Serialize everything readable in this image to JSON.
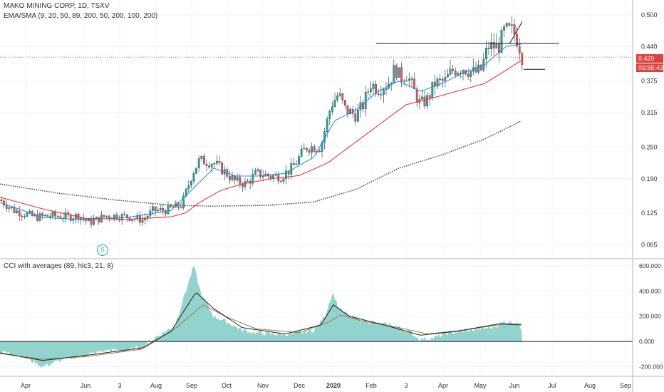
{
  "header": {
    "title": "MAKO MINING CORP, 1D, TSXV",
    "indicators": "EMA/SMA (9, 20, 50, 89, 200, 50, 200, 100, 200)",
    "cci_label": "CCI with averages (89, hlc3, 21, 8)"
  },
  "price_tag": {
    "price": "0.420",
    "countdown": "03:55:43"
  },
  "split_marker": "S",
  "colors": {
    "up": "#26a69a",
    "down": "#ef5350",
    "wick": "#37474f",
    "ema_fast": "#1e88e5",
    "ema_slow": "#e53935",
    "sma_long": "#555555",
    "cci_fill": "#80cbc4",
    "cci_avg_fast": "#222222",
    "cci_avg_slow": "#a1794a",
    "price_line": "#e0403c"
  },
  "chart_data": [
    {
      "type": "candlestick",
      "title": "MAKO MINING CORP, 1D, TSXV",
      "x_ticks": [
        "Apr",
        "Jun",
        "3",
        "Aug",
        "Sep",
        "Oct",
        "Nov",
        "Dec",
        "2020",
        "Feb",
        "3",
        "Apr",
        "May",
        "Jun",
        "Jul",
        "Aug",
        "Sep"
      ],
      "y_ticks": [
        "0.500",
        "0.440",
        "0.375",
        "0.315",
        "0.250",
        "0.190",
        "0.125",
        "0.065"
      ],
      "ylim": [
        0.04,
        0.52
      ],
      "last_price": 0.42,
      "price_anchors": [
        [
          0,
          0.15
        ],
        [
          20,
          0.13
        ],
        [
          50,
          0.117
        ],
        [
          70,
          0.12
        ],
        [
          95,
          0.118
        ],
        [
          110,
          0.12
        ],
        [
          125,
          0.107
        ],
        [
          150,
          0.12
        ],
        [
          160,
          0.12
        ],
        [
          180,
          0.118
        ],
        [
          200,
          0.112
        ],
        [
          215,
          0.13
        ],
        [
          230,
          0.13
        ],
        [
          255,
          0.14
        ],
        [
          270,
          0.2
        ],
        [
          280,
          0.225
        ],
        [
          300,
          0.22
        ],
        [
          318,
          0.2
        ],
        [
          330,
          0.185
        ],
        [
          345,
          0.18
        ],
        [
          360,
          0.2
        ],
        [
          380,
          0.195
        ],
        [
          395,
          0.195
        ],
        [
          410,
          0.21
        ],
        [
          430,
          0.25
        ],
        [
          450,
          0.25
        ],
        [
          465,
          0.33
        ],
        [
          475,
          0.35
        ],
        [
          485,
          0.32
        ],
        [
          500,
          0.31
        ],
        [
          510,
          0.33
        ],
        [
          520,
          0.37
        ],
        [
          530,
          0.36
        ],
        [
          545,
          0.37
        ],
        [
          555,
          0.4
        ],
        [
          562,
          0.38
        ],
        [
          570,
          0.39
        ],
        [
          580,
          0.36
        ],
        [
          590,
          0.33
        ],
        [
          600,
          0.34
        ],
        [
          610,
          0.37
        ],
        [
          625,
          0.375
        ],
        [
          635,
          0.395
        ],
        [
          650,
          0.4
        ],
        [
          665,
          0.39
        ],
        [
          675,
          0.395
        ],
        [
          685,
          0.44
        ],
        [
          700,
          0.44
        ],
        [
          708,
          0.47
        ],
        [
          720,
          0.47
        ],
        [
          727,
          0.45
        ],
        [
          733,
          0.42
        ]
      ],
      "ema_fast_anchors": [
        [
          0,
          0.145
        ],
        [
          60,
          0.117
        ],
        [
          120,
          0.112
        ],
        [
          180,
          0.117
        ],
        [
          240,
          0.13
        ],
        [
          270,
          0.17
        ],
        [
          300,
          0.21
        ],
        [
          330,
          0.195
        ],
        [
          360,
          0.195
        ],
        [
          400,
          0.2
        ],
        [
          440,
          0.23
        ],
        [
          470,
          0.3
        ],
        [
          500,
          0.32
        ],
        [
          530,
          0.355
        ],
        [
          560,
          0.375
        ],
        [
          590,
          0.355
        ],
        [
          620,
          0.37
        ],
        [
          650,
          0.39
        ],
        [
          680,
          0.405
        ],
        [
          710,
          0.44
        ],
        [
          733,
          0.445
        ]
      ],
      "ema_slow_anchors": [
        [
          0,
          0.155
        ],
        [
          60,
          0.133
        ],
        [
          120,
          0.115
        ],
        [
          180,
          0.113
        ],
        [
          240,
          0.118
        ],
        [
          260,
          0.125
        ],
        [
          280,
          0.145
        ],
        [
          310,
          0.168
        ],
        [
          340,
          0.18
        ],
        [
          380,
          0.19
        ],
        [
          420,
          0.196
        ],
        [
          460,
          0.22
        ],
        [
          500,
          0.26
        ],
        [
          540,
          0.3
        ],
        [
          570,
          0.33
        ],
        [
          600,
          0.34
        ],
        [
          640,
          0.355
        ],
        [
          680,
          0.37
        ],
        [
          710,
          0.395
        ],
        [
          733,
          0.415
        ]
      ],
      "sma_long_anchors": [
        [
          0,
          0.18
        ],
        [
          80,
          0.163
        ],
        [
          160,
          0.15
        ],
        [
          240,
          0.14
        ],
        [
          300,
          0.138
        ],
        [
          380,
          0.14
        ],
        [
          440,
          0.146
        ],
        [
          500,
          0.17
        ],
        [
          560,
          0.21
        ],
        [
          620,
          0.235
        ],
        [
          680,
          0.265
        ],
        [
          733,
          0.3
        ]
      ],
      "resistance": {
        "price": 0.446,
        "from_x": 528,
        "to_x": 785
      },
      "support": {
        "price": 0.397,
        "from_x": 735,
        "to_x": 765
      }
    },
    {
      "type": "area",
      "title": "CCI with averages (89, hlc3, 21, 8)",
      "y_ticks": [
        "600.000",
        "400.000",
        "200.000",
        "0.000",
        "-200.000"
      ],
      "ylim": [
        -270,
        650
      ],
      "cci_anchors": [
        [
          0,
          -80
        ],
        [
          30,
          -110
        ],
        [
          60,
          -200
        ],
        [
          90,
          -140
        ],
        [
          120,
          -110
        ],
        [
          150,
          -70
        ],
        [
          180,
          -70
        ],
        [
          200,
          -40
        ],
        [
          220,
          40
        ],
        [
          245,
          120
        ],
        [
          262,
          420
        ],
        [
          272,
          600
        ],
        [
          282,
          380
        ],
        [
          300,
          200
        ],
        [
          320,
          150
        ],
        [
          340,
          90
        ],
        [
          360,
          70
        ],
        [
          380,
          60
        ],
        [
          410,
          60
        ],
        [
          440,
          90
        ],
        [
          455,
          190
        ],
        [
          467,
          390
        ],
        [
          475,
          270
        ],
        [
          490,
          200
        ],
        [
          510,
          170
        ],
        [
          530,
          140
        ],
        [
          550,
          130
        ],
        [
          570,
          90
        ],
        [
          590,
          20
        ],
        [
          610,
          30
        ],
        [
          630,
          70
        ],
        [
          660,
          90
        ],
        [
          690,
          110
        ],
        [
          710,
          160
        ],
        [
          725,
          150
        ],
        [
          733,
          100
        ]
      ],
      "avg_fast_anchors": [
        [
          0,
          -90
        ],
        [
          60,
          -150
        ],
        [
          120,
          -110
        ],
        [
          200,
          -50
        ],
        [
          240,
          80
        ],
        [
          275,
          390
        ],
        [
          300,
          260
        ],
        [
          340,
          110
        ],
        [
          400,
          60
        ],
        [
          450,
          130
        ],
        [
          468,
          290
        ],
        [
          490,
          200
        ],
        [
          540,
          130
        ],
        [
          590,
          50
        ],
        [
          640,
          80
        ],
        [
          700,
          140
        ],
        [
          733,
          130
        ]
      ],
      "avg_slow_anchors": [
        [
          0,
          -95
        ],
        [
          60,
          -140
        ],
        [
          120,
          -120
        ],
        [
          200,
          -60
        ],
        [
          245,
          100
        ],
        [
          285,
          290
        ],
        [
          320,
          190
        ],
        [
          360,
          100
        ],
        [
          420,
          70
        ],
        [
          460,
          150
        ],
        [
          478,
          210
        ],
        [
          510,
          160
        ],
        [
          560,
          110
        ],
        [
          600,
          60
        ],
        [
          650,
          90
        ],
        [
          710,
          140
        ],
        [
          733,
          140
        ]
      ],
      "baseline": 0
    }
  ]
}
